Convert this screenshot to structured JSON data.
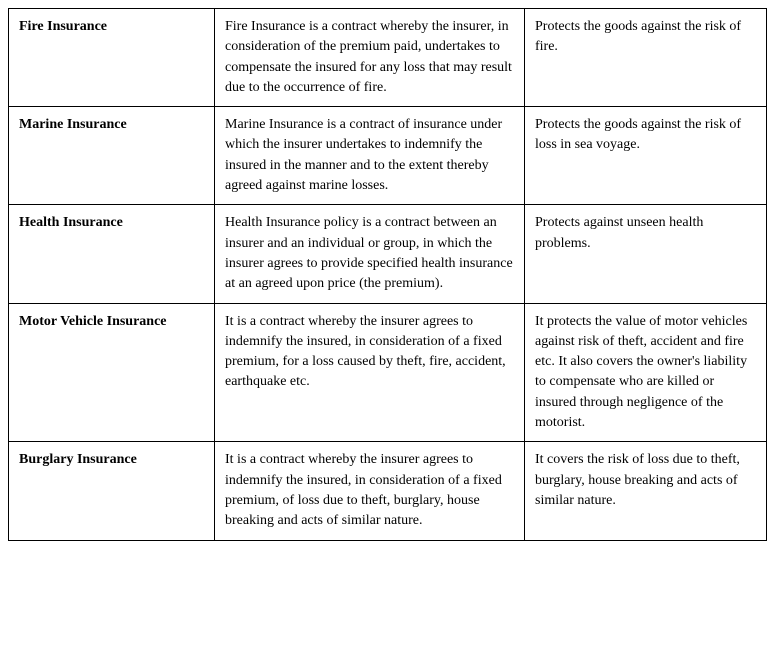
{
  "table": {
    "rows": [
      {
        "type": "Fire Insurance",
        "definition": "Fire Insurance is a contract whereby the insurer, in consideration of the premium paid, undertakes to compen­sate the insured for any loss that may result due to the occurrence of fire.",
        "protection": "Protects the goods against the risk of fire."
      },
      {
        "type": "Marine Insurance",
        "definition": "Marine Insurance is a contract of insurance under which the insurer undertakes to indemnify the insured in the manner and to the extent thereby agreed against marine losses.",
        "protection": "Protects the goods against the risk of loss in sea voyage."
      },
      {
        "type": "Health Insurance",
        "definition": "Health Insurance policy is a contract between an insurer and an individual or group, in which the insurer agrees to provide specified health insurance at an agreed upon price (the premium).",
        "protection": "Protects against unseen health problems."
      },
      {
        "type": "Motor Vehicle Insurance",
        "definition": "It is a contract whereby the insurer agrees to indemnify the insured, in consideration of a fixed premium, for a loss caused by theft, fire, accident, earthquake etc.",
        "protection": "It protects the value of motor vehicles against risk of theft, accident and fire etc. It also covers the owner's liability to compensate who are killed or insured through negligence of the motorist."
      },
      {
        "type": "Burglary Insurance",
        "definition": "It is a contract whereby the insurer agrees to indemnify the insured, in consideration of a fixed premium, of loss due to theft, burglary, house breaking and acts of similar nature.",
        "protection": "It covers the risk of loss due to theft, burglary, house breaking and acts of similar nature."
      }
    ]
  }
}
